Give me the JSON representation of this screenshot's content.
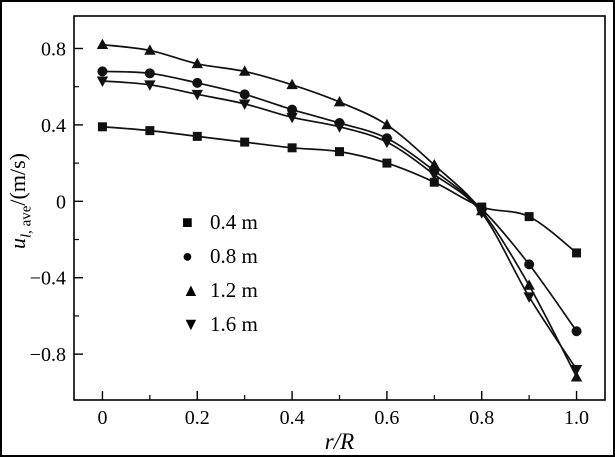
{
  "figure": {
    "background": "#ffffff",
    "border_color": "#000000"
  },
  "chart_data": {
    "type": "line",
    "title": "",
    "xlabel": "r/R",
    "ylabel_var": "u",
    "ylabel_sub_italic": "l",
    "ylabel_sub_roman": ", ave",
    "ylabel_unit": "/(m/s)",
    "xlim": [
      -0.06,
      1.06
    ],
    "ylim": [
      -1.04,
      0.97
    ],
    "xticks": [
      0,
      0.2,
      0.4,
      0.6,
      0.8,
      1.0
    ],
    "xtick_labels": [
      "0",
      "0.2",
      "0.4",
      "0.6",
      "0.8",
      "1.0"
    ],
    "xticks_minor": [
      0.1,
      0.3,
      0.5,
      0.7,
      0.9
    ],
    "yticks": [
      -0.8,
      -0.4,
      0,
      0.4,
      0.8
    ],
    "ytick_labels": [
      "−0.8",
      "−0.4",
      "0",
      "0.4",
      "0.8"
    ],
    "yticks_minor": [
      -0.6,
      -0.2,
      0.2,
      0.6
    ],
    "grid": false,
    "legend_position": "center-left",
    "line_color": "#111111",
    "background": "#ffffff",
    "x": [
      0,
      0.1,
      0.2,
      0.3,
      0.4,
      0.5,
      0.6,
      0.7,
      0.8,
      0.9,
      1.0
    ],
    "series": [
      {
        "name": "0.4 m",
        "marker": "square",
        "values": [
          0.39,
          0.37,
          0.34,
          0.31,
          0.28,
          0.26,
          0.2,
          0.1,
          -0.03,
          -0.08,
          -0.27
        ]
      },
      {
        "name": "0.8 m",
        "marker": "circle",
        "values": [
          0.68,
          0.67,
          0.62,
          0.56,
          0.48,
          0.41,
          0.33,
          0.16,
          -0.04,
          -0.33,
          -0.68
        ]
      },
      {
        "name": "1.2 m",
        "marker": "triangle-up",
        "values": [
          0.82,
          0.79,
          0.72,
          0.68,
          0.61,
          0.52,
          0.4,
          0.19,
          -0.05,
          -0.44,
          -0.92
        ]
      },
      {
        "name": "1.6 m",
        "marker": "triangle-down",
        "values": [
          0.63,
          0.61,
          0.56,
          0.51,
          0.44,
          0.39,
          0.31,
          0.14,
          -0.06,
          -0.5,
          -0.88
        ]
      }
    ],
    "marker_glyphs": {
      "square": "■",
      "circle": "●",
      "triangle-up": "▲",
      "triangle-down": "▼"
    }
  }
}
